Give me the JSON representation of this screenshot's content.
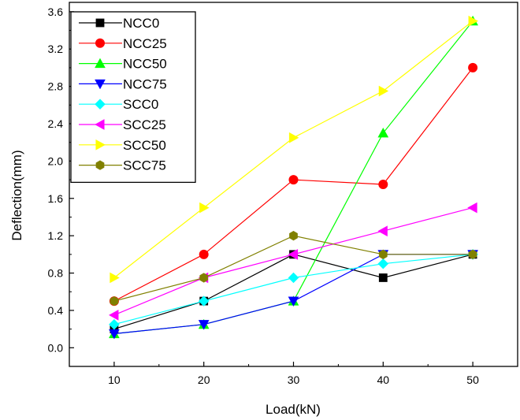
{
  "chart_data": {
    "type": "line",
    "title": "",
    "xlabel": "Load(kN)",
    "ylabel": "Deflection(mm)",
    "x": [
      10,
      20,
      30,
      40,
      50
    ],
    "xlim": [
      5,
      55
    ],
    "ylim": [
      -0.2,
      3.7
    ],
    "xticks": [
      10,
      20,
      30,
      40,
      50
    ],
    "yticks": [
      0.0,
      0.4,
      0.8,
      1.2,
      1.6,
      2.0,
      2.4,
      2.8,
      3.2,
      3.6
    ],
    "xtick_labels": [
      "10",
      "20",
      "30",
      "40",
      "50"
    ],
    "ytick_labels": [
      "0.0",
      "0.4",
      "0.8",
      "1.2",
      "1.6",
      "2.0",
      "2.4",
      "2.8",
      "3.2",
      "3.6"
    ],
    "grid": false,
    "legend_position": "top-left",
    "series": [
      {
        "name": "NCC0",
        "color": "#000000",
        "marker": "square",
        "values": [
          0.2,
          0.5,
          1.0,
          0.75,
          1.0
        ]
      },
      {
        "name": "NCC25",
        "color": "#ff0000",
        "marker": "circle",
        "values": [
          0.5,
          1.0,
          1.8,
          1.75,
          3.0
        ]
      },
      {
        "name": "NCC50",
        "color": "#00ff00",
        "marker": "triangle-up",
        "values": [
          0.15,
          0.25,
          0.5,
          2.3,
          3.5
        ]
      },
      {
        "name": "NCC75",
        "color": "#0000ff",
        "marker": "triangle-down",
        "values": [
          0.15,
          0.25,
          0.5,
          1.0,
          1.0
        ]
      },
      {
        "name": "SCC0",
        "color": "#00ffff",
        "marker": "diamond",
        "values": [
          0.25,
          0.5,
          0.75,
          0.9,
          1.0
        ]
      },
      {
        "name": "SCC25",
        "color": "#ff00ff",
        "marker": "triangle-left",
        "values": [
          0.35,
          0.75,
          1.0,
          1.25,
          1.5
        ]
      },
      {
        "name": "SCC50",
        "color": "#ffff00",
        "marker": "triangle-right",
        "values": [
          0.75,
          1.5,
          2.25,
          2.75,
          3.5
        ]
      },
      {
        "name": "SCC75",
        "color": "#808000",
        "marker": "hexagon",
        "values": [
          0.5,
          0.75,
          1.2,
          1.0,
          1.0
        ]
      }
    ]
  }
}
